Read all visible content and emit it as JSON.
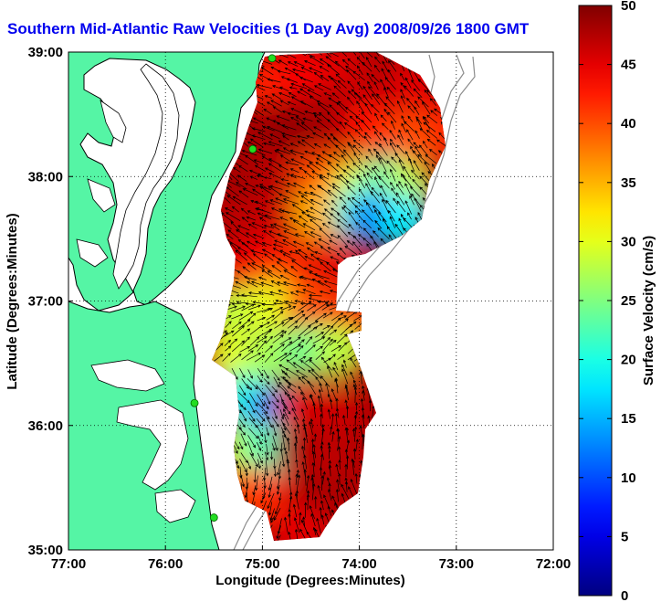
{
  "title": "Southern Mid-Atlantic Raw Velocities (1 Day Avg) 2008/09/26 1800 GMT",
  "map": {
    "xlabel": "Longitude (Degrees:Minutes)",
    "ylabel": "Latitude (Degrees:Minutes)",
    "x_ticks": [
      "77:00",
      "76:00",
      "75:00",
      "74:00",
      "73:00",
      "72:00"
    ],
    "y_ticks": [
      "39:00",
      "38:00",
      "37:00",
      "36:00",
      "35:00"
    ],
    "colors": {
      "land": "#55f5a5",
      "coast": "#000000",
      "isobath": "#8c8c8c",
      "stations": "#22dd22"
    }
  },
  "colorbar": {
    "label": "Surface Velocity (cm/s)",
    "range": [
      0,
      50
    ],
    "ticks": [
      "0",
      "5",
      "10",
      "15",
      "20",
      "25",
      "30",
      "35",
      "40",
      "45",
      "50"
    ],
    "colormap": "jet"
  },
  "chart_data": {
    "type": "heatmap",
    "title": "Southern Mid-Atlantic Raw Velocities (1 Day Avg) 2008/09/26 1800 GMT",
    "xlabel": "Longitude (Degrees:Minutes)",
    "ylabel": "Latitude (Degrees:Minutes)",
    "xlim": [
      -77,
      -72
    ],
    "ylim": [
      35,
      39
    ],
    "grid": true,
    "value_label": "Surface Velocity (cm/s)",
    "value_range": [
      0,
      50
    ],
    "stations": [
      {
        "lon": -74.9,
        "lat": 38.95
      },
      {
        "lon": -75.1,
        "lat": 38.22
      },
      {
        "lon": -75.7,
        "lat": 36.18
      },
      {
        "lon": -75.5,
        "lat": 35.26
      }
    ],
    "field": [
      {
        "lon": -75.0,
        "lat": 38.75,
        "speed": 42
      },
      {
        "lon": -74.6,
        "lat": 38.85,
        "speed": 44
      },
      {
        "lon": -74.2,
        "lat": 38.85,
        "speed": 45
      },
      {
        "lon": -73.8,
        "lat": 38.8,
        "speed": 47
      },
      {
        "lon": -73.4,
        "lat": 38.7,
        "speed": 45
      },
      {
        "lon": -73.1,
        "lat": 38.35,
        "speed": 42
      },
      {
        "lon": -75.1,
        "lat": 38.4,
        "speed": 48
      },
      {
        "lon": -74.7,
        "lat": 38.4,
        "speed": 49
      },
      {
        "lon": -74.3,
        "lat": 38.5,
        "speed": 48
      },
      {
        "lon": -73.9,
        "lat": 38.4,
        "speed": 43
      },
      {
        "lon": -73.5,
        "lat": 38.3,
        "speed": 40
      },
      {
        "lon": -75.2,
        "lat": 38.0,
        "speed": 48
      },
      {
        "lon": -74.8,
        "lat": 38.0,
        "speed": 47
      },
      {
        "lon": -74.4,
        "lat": 38.0,
        "speed": 40
      },
      {
        "lon": -74.0,
        "lat": 37.95,
        "speed": 30
      },
      {
        "lon": -73.7,
        "lat": 37.95,
        "speed": 22
      },
      {
        "lon": -73.5,
        "lat": 37.9,
        "speed": 28
      },
      {
        "lon": -75.2,
        "lat": 37.6,
        "speed": 47
      },
      {
        "lon": -74.8,
        "lat": 37.6,
        "speed": 46
      },
      {
        "lon": -74.4,
        "lat": 37.7,
        "speed": 35
      },
      {
        "lon": -74.0,
        "lat": 37.7,
        "speed": 20
      },
      {
        "lon": -73.8,
        "lat": 37.65,
        "speed": 10
      },
      {
        "lon": -73.55,
        "lat": 37.65,
        "speed": 18
      },
      {
        "lon": -75.1,
        "lat": 37.25,
        "speed": 44
      },
      {
        "lon": -74.7,
        "lat": 37.25,
        "speed": 42
      },
      {
        "lon": -74.3,
        "lat": 37.3,
        "speed": 45
      },
      {
        "lon": -75.3,
        "lat": 36.9,
        "speed": 28
      },
      {
        "lon": -74.9,
        "lat": 36.95,
        "speed": 30
      },
      {
        "lon": -74.5,
        "lat": 36.95,
        "speed": 40
      },
      {
        "lon": -74.1,
        "lat": 36.85,
        "speed": 42
      },
      {
        "lon": -75.3,
        "lat": 36.55,
        "speed": 30
      },
      {
        "lon": -74.9,
        "lat": 36.55,
        "speed": 27
      },
      {
        "lon": -74.5,
        "lat": 36.6,
        "speed": 24
      },
      {
        "lon": -74.2,
        "lat": 36.6,
        "speed": 28
      },
      {
        "lon": -75.2,
        "lat": 36.2,
        "speed": 20
      },
      {
        "lon": -74.9,
        "lat": 36.1,
        "speed": 12
      },
      {
        "lon": -74.6,
        "lat": 36.1,
        "speed": 45
      },
      {
        "lon": -74.3,
        "lat": 36.1,
        "speed": 46
      },
      {
        "lon": -75.2,
        "lat": 35.8,
        "speed": 28
      },
      {
        "lon": -74.9,
        "lat": 35.8,
        "speed": 22
      },
      {
        "lon": -74.6,
        "lat": 35.8,
        "speed": 48
      },
      {
        "lon": -74.3,
        "lat": 35.8,
        "speed": 47
      },
      {
        "lon": -75.1,
        "lat": 35.45,
        "speed": 40
      },
      {
        "lon": -74.8,
        "lat": 35.4,
        "speed": 42
      },
      {
        "lon": -74.5,
        "lat": 35.4,
        "speed": 48
      },
      {
        "lon": -74.6,
        "lat": 35.15,
        "speed": 45
      }
    ]
  }
}
